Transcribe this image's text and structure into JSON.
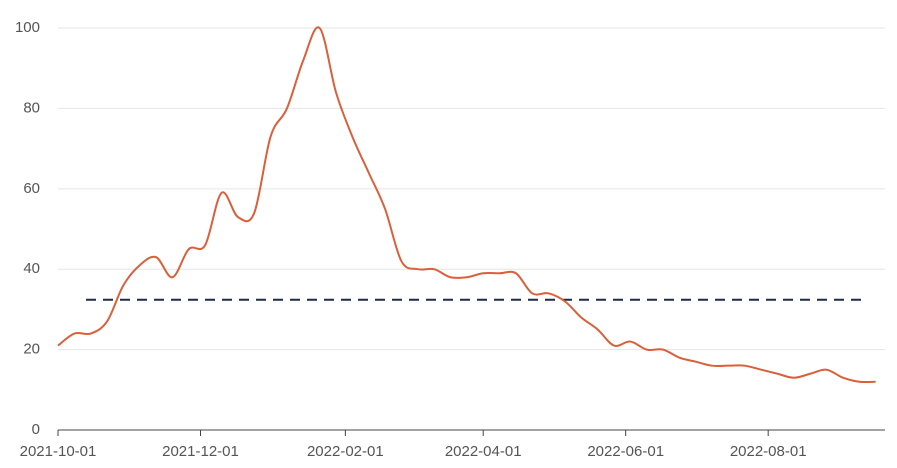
{
  "chart_data": {
    "type": "line",
    "x": [
      "2021-10-01",
      "2021-10-08",
      "2021-10-15",
      "2021-10-22",
      "2021-10-29",
      "2021-11-05",
      "2021-11-12",
      "2021-11-19",
      "2021-11-26",
      "2021-12-03",
      "2021-12-10",
      "2021-12-17",
      "2021-12-24",
      "2021-12-31",
      "2022-01-07",
      "2022-01-14",
      "2022-01-21",
      "2022-01-28",
      "2022-02-04",
      "2022-02-11",
      "2022-02-18",
      "2022-02-25",
      "2022-03-04",
      "2022-03-11",
      "2022-03-18",
      "2022-03-25",
      "2022-04-01",
      "2022-04-08",
      "2022-04-15",
      "2022-04-22",
      "2022-04-29",
      "2022-05-06",
      "2022-05-13",
      "2022-05-20",
      "2022-05-27",
      "2022-06-03",
      "2022-06-10",
      "2022-06-17",
      "2022-06-24",
      "2022-07-01",
      "2022-07-08",
      "2022-07-15",
      "2022-07-22",
      "2022-07-29",
      "2022-08-05",
      "2022-08-12",
      "2022-08-19",
      "2022-08-26",
      "2022-09-02",
      "2022-09-09",
      "2022-09-16"
    ],
    "series": [
      {
        "color": "#d9603b",
        "values": [
          21,
          24,
          24,
          27,
          36,
          41,
          43,
          38,
          45,
          46,
          59,
          53,
          54,
          73,
          80,
          92,
          100,
          84,
          73,
          64,
          55,
          42,
          40,
          40,
          38,
          38,
          39,
          39,
          39,
          34,
          34,
          32,
          28,
          25,
          21,
          22,
          20,
          20,
          18,
          17,
          16,
          16,
          16,
          15,
          14,
          13,
          14,
          15,
          13,
          12,
          12
        ]
      }
    ],
    "reference": {
      "value": 32.4,
      "color": "#1f2a4a"
    },
    "xlim": [
      "2021-10-01",
      "2022-09-20"
    ],
    "xticks": [
      "2021-10-01",
      "2021-12-01",
      "2022-02-01",
      "2022-04-01",
      "2022-06-01",
      "2022-08-01"
    ],
    "ylim": [
      0,
      102
    ],
    "yticks": [
      0,
      20,
      40,
      60,
      80,
      100
    ],
    "grid": true
  }
}
